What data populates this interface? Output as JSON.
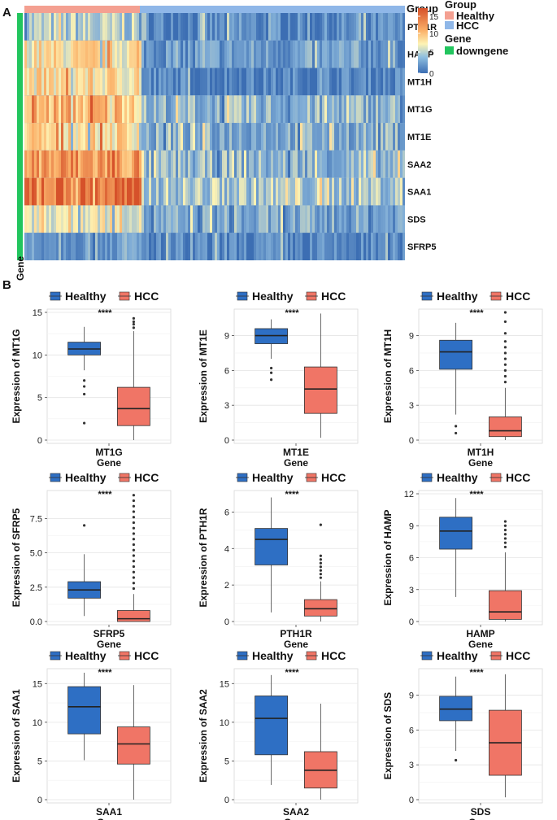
{
  "panel_labels": {
    "heatmap": "A",
    "boxplots": "B"
  },
  "colors": {
    "healthy_group": "#f4a091",
    "hcc_group": "#8fb7e8",
    "downgene": "#22c55e",
    "box_healthy": "#2e6fc4",
    "box_hcc": "#f07566",
    "heat_low": "#3c6eb3",
    "heat_mid": "#fdf3b4",
    "heat_high": "#d6512a"
  },
  "heatmap": {
    "legend": {
      "group_title": "Group",
      "group_items": [
        "Healthy",
        "HCC"
      ],
      "gene_title": "Gene",
      "gene_items": [
        "downgene"
      ],
      "scale_ticks": [
        15,
        10,
        5,
        0
      ]
    },
    "gene_axis_label": "Gene",
    "genes": [
      "PTH1R",
      "HAMP",
      "MT1H",
      "MT1G",
      "MT1E",
      "SAA2",
      "SAA1",
      "SDS",
      "SFRP5"
    ]
  },
  "chart_data": [
    {
      "type": "box",
      "gene": "MT1G",
      "ylabel": "Expression of MT1G",
      "xlabel": "Gene",
      "legend": [
        "Healthy",
        "HCC"
      ],
      "signif": "****",
      "yticks": [
        0,
        5,
        10,
        15
      ],
      "ylim": [
        0,
        15
      ],
      "series": [
        {
          "name": "Healthy",
          "q1": 10,
          "median": 10.7,
          "q3": 11.5,
          "whisker_low": 8.2,
          "whisker_high": 13.3,
          "outliers": [
            7,
            6.3,
            5.4,
            2
          ]
        },
        {
          "name": "HCC",
          "q1": 1.7,
          "median": 3.7,
          "q3": 6.2,
          "whisker_low": 0,
          "whisker_high": 12.8,
          "outliers": [
            13.2,
            13.6,
            13.9,
            14.3
          ]
        }
      ]
    },
    {
      "type": "box",
      "gene": "MT1E",
      "ylabel": "Expression of MT1E",
      "xlabel": "Gene",
      "legend": [
        "Healthy",
        "HCC"
      ],
      "signif": "****",
      "yticks": [
        0,
        3,
        6,
        9
      ],
      "ylim": [
        0,
        11
      ],
      "series": [
        {
          "name": "Healthy",
          "q1": 8.3,
          "median": 9,
          "q3": 9.6,
          "whisker_low": 7,
          "whisker_high": 10.4,
          "outliers": [
            6.2,
            5.8,
            5.2
          ]
        },
        {
          "name": "HCC",
          "q1": 2.3,
          "median": 4.4,
          "q3": 6.3,
          "whisker_low": 0.2,
          "whisker_high": 10.9,
          "outliers": []
        }
      ]
    },
    {
      "type": "box",
      "gene": "MT1H",
      "ylabel": "Expression of MT1H",
      "xlabel": "Gene",
      "legend": [
        "Healthy",
        "HCC"
      ],
      "signif": "****",
      "yticks": [
        0,
        3,
        6,
        9
      ],
      "ylim": [
        0,
        11
      ],
      "series": [
        {
          "name": "Healthy",
          "q1": 6.1,
          "median": 7.6,
          "q3": 8.6,
          "whisker_low": 2.2,
          "whisker_high": 10.1,
          "outliers": [
            1.2,
            0.6
          ]
        },
        {
          "name": "HCC",
          "q1": 0.3,
          "median": 0.8,
          "q3": 2,
          "whisker_low": 0,
          "whisker_high": 4.5,
          "outliers": [
            5,
            5.5,
            6,
            6.5,
            7,
            7.5,
            8,
            8.5,
            9.2,
            10.2,
            11
          ]
        }
      ]
    },
    {
      "type": "box",
      "gene": "SFRP5",
      "ylabel": "Expression of SFRP5",
      "xlabel": "Gene",
      "legend": [
        "Healthy",
        "HCC"
      ],
      "signif": "****",
      "yticks": [
        0.0,
        2.5,
        5.0,
        7.5
      ],
      "ylim": [
        0,
        9.3
      ],
      "series": [
        {
          "name": "Healthy",
          "q1": 1.7,
          "median": 2.3,
          "q3": 2.9,
          "whisker_low": 0.4,
          "whisker_high": 4.9,
          "outliers": [
            7
          ]
        },
        {
          "name": "HCC",
          "q1": 0,
          "median": 0.2,
          "q3": 0.8,
          "whisker_low": 0,
          "whisker_high": 2,
          "outliers": [
            2.4,
            2.8,
            3.2,
            3.6,
            4,
            4.4,
            4.8,
            5.2,
            5.6,
            6,
            6.4,
            6.8,
            7.2,
            7.6,
            8,
            8.4,
            8.8,
            9.2
          ]
        }
      ]
    },
    {
      "type": "box",
      "gene": "PTH1R",
      "ylabel": "Expression of PTH1R",
      "xlabel": "Gene",
      "legend": [
        "Healthy",
        "HCC"
      ],
      "signif": "****",
      "yticks": [
        0,
        2,
        4,
        6
      ],
      "ylim": [
        0,
        7
      ],
      "series": [
        {
          "name": "Healthy",
          "q1": 3.1,
          "median": 4.5,
          "q3": 5.1,
          "whisker_low": 0.5,
          "whisker_high": 6.8,
          "outliers": []
        },
        {
          "name": "HCC",
          "q1": 0.3,
          "median": 0.7,
          "q3": 1.2,
          "whisker_low": 0,
          "whisker_high": 2.2,
          "outliers": [
            2.4,
            2.6,
            2.8,
            3,
            3.2,
            3.4,
            3.6,
            5.3
          ]
        }
      ]
    },
    {
      "type": "box",
      "gene": "HAMP",
      "ylabel": "Expression of HAMP",
      "xlabel": "Gene",
      "legend": [
        "Healthy",
        "HCC"
      ],
      "signif": "****",
      "yticks": [
        0,
        3,
        6,
        9,
        12
      ],
      "ylim": [
        0,
        12
      ],
      "series": [
        {
          "name": "Healthy",
          "q1": 6.8,
          "median": 8.5,
          "q3": 9.8,
          "whisker_low": 2.3,
          "whisker_high": 11.6,
          "outliers": []
        },
        {
          "name": "HCC",
          "q1": 0.2,
          "median": 0.9,
          "q3": 2.9,
          "whisker_low": 0,
          "whisker_high": 6.5,
          "outliers": [
            7,
            7.4,
            7.8,
            8.2,
            8.6,
            9,
            9.4
          ]
        }
      ]
    },
    {
      "type": "box",
      "gene": "SAA1",
      "ylabel": "Expression of SAA1",
      "xlabel": "Gene",
      "legend": [
        "Healthy",
        "HCC"
      ],
      "signif": "****",
      "yticks": [
        0,
        5,
        10,
        15
      ],
      "ylim": [
        0,
        16.5
      ],
      "series": [
        {
          "name": "Healthy",
          "q1": 8.5,
          "median": 12,
          "q3": 14.6,
          "whisker_low": 5.1,
          "whisker_high": 16.4,
          "outliers": []
        },
        {
          "name": "HCC",
          "q1": 4.6,
          "median": 7.2,
          "q3": 9.4,
          "whisker_low": 0,
          "whisker_high": 14.8,
          "outliers": []
        }
      ]
    },
    {
      "type": "box",
      "gene": "SAA2",
      "ylabel": "Expression of SAA2",
      "xlabel": "Gene",
      "legend": [
        "Healthy",
        "HCC"
      ],
      "signif": "****",
      "yticks": [
        0,
        5,
        10,
        15
      ],
      "ylim": [
        0,
        16.5
      ],
      "series": [
        {
          "name": "Healthy",
          "q1": 5.8,
          "median": 10.5,
          "q3": 13.4,
          "whisker_low": 1.9,
          "whisker_high": 16.1,
          "outliers": []
        },
        {
          "name": "HCC",
          "q1": 1.5,
          "median": 3.8,
          "q3": 6.2,
          "whisker_low": 0,
          "whisker_high": 12.4,
          "outliers": []
        }
      ]
    },
    {
      "type": "box",
      "gene": "SDS",
      "ylabel": "Expression of SDS",
      "xlabel": "Gene",
      "legend": [
        "Healthy",
        "HCC"
      ],
      "signif": "****",
      "yticks": [
        0,
        3,
        6,
        9
      ],
      "ylim": [
        0,
        11
      ],
      "series": [
        {
          "name": "Healthy",
          "q1": 6.8,
          "median": 7.8,
          "q3": 8.9,
          "whisker_low": 4.2,
          "whisker_high": 10.6,
          "outliers": [
            3.4
          ]
        },
        {
          "name": "HCC",
          "q1": 2.1,
          "median": 4.9,
          "q3": 7.7,
          "whisker_low": 0.2,
          "whisker_high": 10.8,
          "outliers": []
        }
      ]
    }
  ]
}
